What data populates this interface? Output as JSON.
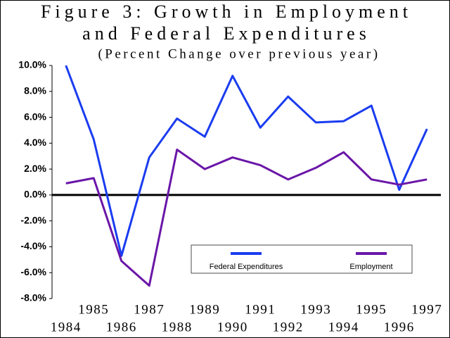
{
  "chart_data": {
    "type": "line",
    "title": [
      "Figure 3: Growth in Employment",
      "and Federal Expenditures"
    ],
    "subtitle": "(Percent Change over previous year)",
    "categories": [
      "1984",
      "1985",
      "1986",
      "1987",
      "1988",
      "1989",
      "1990",
      "1991",
      "1992",
      "1993",
      "1994",
      "1995",
      "1996",
      "1997"
    ],
    "series": [
      {
        "name": "Federal Expenditures",
        "color": "#1a3cf0",
        "values": [
          10.0,
          4.3,
          -4.7,
          2.9,
          5.9,
          4.5,
          9.2,
          5.2,
          7.6,
          5.6,
          5.7,
          6.9,
          0.4,
          5.1
        ]
      },
      {
        "name": "Employment",
        "color": "#6a16a8",
        "values": [
          0.9,
          1.3,
          -5.1,
          -7.0,
          3.5,
          2.0,
          2.9,
          2.3,
          1.2,
          2.1,
          3.3,
          1.2,
          0.8,
          1.2
        ]
      }
    ],
    "ylim": [
      -8,
      10
    ],
    "yticks": [
      {
        "value": 10,
        "label": "10.0%"
      },
      {
        "value": 8,
        "label": "8.0%"
      },
      {
        "value": 6,
        "label": "6.0%"
      },
      {
        "value": 4,
        "label": "4.0%"
      },
      {
        "value": 2,
        "label": "2.0%"
      },
      {
        "value": 0,
        "label": "0.0%"
      },
      {
        "value": -2,
        "label": "-2.0%"
      },
      {
        "value": -4,
        "label": "-4.0%"
      },
      {
        "value": -6,
        "label": "-6.0%"
      },
      {
        "value": -8,
        "label": "-8.0%"
      }
    ],
    "legend": "lower-right",
    "grid": false
  }
}
